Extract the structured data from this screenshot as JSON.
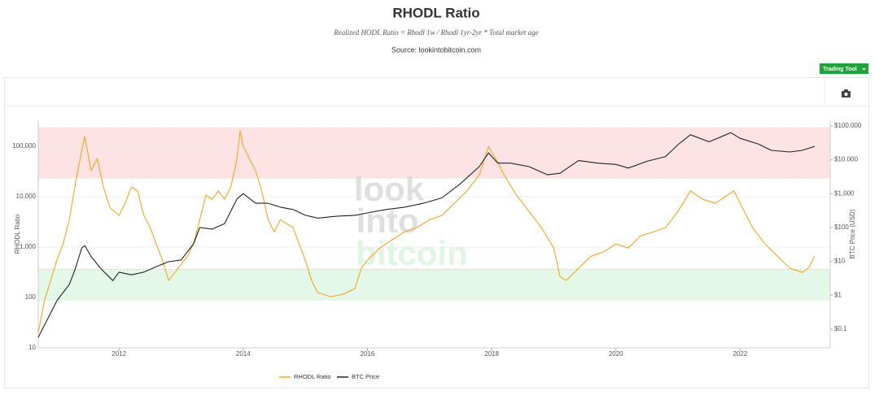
{
  "chart_data": {
    "type": "line",
    "title": "RHODL Ratio",
    "subtitle": "Realized HODL Ratio = Rhodl 1w / Rhodl 1yr-2yr * Total market age",
    "source": "Source: lookintobitcoin.com",
    "button": "Trading Tool",
    "watermark": [
      "look",
      "into",
      "bitcoin"
    ],
    "ylabel": "RHODL Ratio",
    "y2label": "BTC Price (USD)",
    "log_y": true,
    "log_y2": true,
    "grid": true,
    "legend": "bottom",
    "xlim": [
      2010.7,
      2023.45
    ],
    "xticks": [
      2012,
      2014,
      2016,
      2018,
      2020,
      2022
    ],
    "ylim": [
      10,
      330000
    ],
    "yticks": [
      10,
      100,
      {
        "value": 1000,
        "label": "1,000"
      },
      {
        "value": 10000,
        "label": "10,000"
      },
      {
        "value": 100000,
        "label": "100,000"
      }
    ],
    "y2lim": [
      0.028,
      147000
    ],
    "y2ticks": [
      {
        "value": 0.1,
        "label": "$0.1"
      },
      {
        "value": 1,
        "label": "$1"
      },
      {
        "value": 10,
        "label": "$10"
      },
      {
        "value": 100,
        "label": "$100"
      },
      {
        "value": 1000,
        "label": "$1,000"
      },
      {
        "value": 10000,
        "label": "$10.000"
      },
      {
        "value": 100000,
        "label": "$100.000"
      }
    ],
    "bands": [
      {
        "from": 23400,
        "to": 235000,
        "color": "#fde3e3"
      },
      {
        "from": 89,
        "to": 363,
        "color": "#e4f8e8"
      }
    ],
    "series": [
      {
        "name": "RHODL Ratio",
        "color": "#f5a524",
        "x": [
          2010.7,
          2010.8,
          2010.9,
          2011.0,
          2011.1,
          2011.2,
          2011.3,
          2011.4,
          2011.45,
          2011.55,
          2011.65,
          2011.75,
          2011.85,
          2012.0,
          2012.1,
          2012.2,
          2012.3,
          2012.4,
          2012.5,
          2012.6,
          2012.7,
          2012.8,
          2012.9,
          2013.0,
          2013.1,
          2013.2,
          2013.3,
          2013.4,
          2013.5,
          2013.6,
          2013.7,
          2013.8,
          2013.9,
          2013.95,
          2014.0,
          2014.1,
          2014.2,
          2014.3,
          2014.4,
          2014.5,
          2014.6,
          2014.7,
          2014.8,
          2014.9,
          2015.0,
          2015.1,
          2015.2,
          2015.4,
          2015.6,
          2015.8,
          2015.9,
          2016.0,
          2016.2,
          2016.4,
          2016.6,
          2016.8,
          2017.0,
          2017.2,
          2017.4,
          2017.6,
          2017.8,
          2017.95,
          2018.1,
          2018.2,
          2018.4,
          2018.6,
          2018.8,
          2019.0,
          2019.1,
          2019.2,
          2019.4,
          2019.6,
          2019.8,
          2020.0,
          2020.2,
          2020.4,
          2020.6,
          2020.8,
          2021.0,
          2021.2,
          2021.4,
          2021.6,
          2021.8,
          2021.9,
          2022.0,
          2022.2,
          2022.4,
          2022.6,
          2022.8,
          2023.0,
          2023.1,
          2023.2
        ],
        "values": [
          20,
          86,
          218,
          550,
          1160,
          3500,
          19000,
          83000,
          155000,
          33000,
          57000,
          15600,
          6200,
          4250,
          7400,
          15600,
          13000,
          4250,
          2450,
          1160,
          550,
          218,
          315,
          455,
          660,
          1160,
          3500,
          10800,
          8900,
          13000,
          8900,
          15600,
          57000,
          205000,
          100000,
          57000,
          33000,
          13000,
          3500,
          2000,
          3500,
          2900,
          2450,
          1160,
          550,
          218,
          125,
          104,
          115,
          150,
          380,
          550,
          960,
          1400,
          2000,
          2450,
          3500,
          4250,
          7400,
          13000,
          27000,
          100000,
          48000,
          27000,
          10800,
          5100,
          2450,
          960,
          260,
          218,
          380,
          660,
          800,
          1160,
          960,
          1680,
          2000,
          2450,
          5100,
          13000,
          8900,
          7400,
          10800,
          13000,
          7400,
          2450,
          1160,
          660,
          380,
          315,
          380,
          660
        ]
      },
      {
        "name": "BTC Price",
        "color": "#222222",
        "axis": "y2",
        "x": [
          2010.7,
          2010.8,
          2010.9,
          2011.0,
          2011.1,
          2011.2,
          2011.3,
          2011.4,
          2011.45,
          2011.55,
          2011.7,
          2011.9,
          2012.0,
          2012.2,
          2012.4,
          2012.6,
          2012.8,
          2013.0,
          2013.2,
          2013.3,
          2013.5,
          2013.7,
          2013.9,
          2014.0,
          2014.2,
          2014.4,
          2014.6,
          2014.8,
          2015.0,
          2015.2,
          2015.5,
          2015.8,
          2016.0,
          2016.3,
          2016.6,
          2016.9,
          2017.2,
          2017.5,
          2017.8,
          2017.95,
          2018.1,
          2018.3,
          2018.6,
          2018.9,
          2019.1,
          2019.4,
          2019.7,
          2020.0,
          2020.2,
          2020.5,
          2020.8,
          2021.0,
          2021.2,
          2021.5,
          2021.85,
          2022.0,
          2022.3,
          2022.5,
          2022.8,
          2023.0,
          2023.2
        ],
        "values": [
          0.057,
          0.13,
          0.3,
          0.69,
          1.2,
          2.1,
          6.3,
          25,
          29,
          14,
          6.3,
          2.7,
          4.8,
          4.0,
          4.8,
          7,
          9.8,
          11,
          33,
          100,
          90,
          130,
          700,
          1000,
          520,
          520,
          400,
          340,
          230,
          190,
          215,
          230,
          270,
          340,
          400,
          520,
          750,
          2000,
          6300,
          16000,
          8000,
          8000,
          6300,
          3600,
          4000,
          9500,
          8000,
          7300,
          5700,
          9000,
          12500,
          28000,
          55000,
          34000,
          63000,
          43000,
          29000,
          19000,
          17000,
          19000,
          25000
        ]
      }
    ]
  }
}
